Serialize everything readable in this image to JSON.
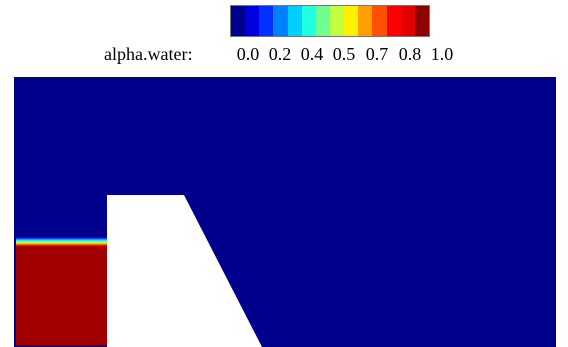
{
  "legend": {
    "title": "alpha.water:",
    "ticks": [
      "0.0",
      "0.2",
      "0.4",
      "0.5",
      "0.7",
      "0.8",
      "1.0"
    ],
    "colormap": [
      "#00008f",
      "#0000df",
      "#0030ff",
      "#0080ff",
      "#00cfff",
      "#20ffdf",
      "#70ff8f",
      "#bfff40",
      "#ffef00",
      "#ff9f00",
      "#ff5000",
      "#ff0000",
      "#df0000",
      "#8f0000"
    ]
  },
  "field": {
    "air_color": "#00008c",
    "water_color": "#a00000",
    "obstacle_color": "#ffffff",
    "water_fraction_range": [
      0.0,
      1.0
    ]
  }
}
